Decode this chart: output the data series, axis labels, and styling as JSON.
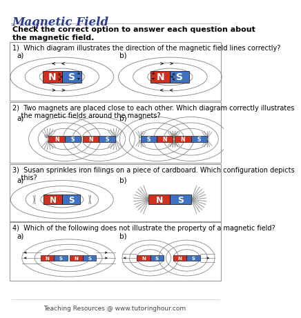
{
  "title": "Magnetic Field",
  "subtitle": "Check the correct option to answer each question about\nthe magnetic field.",
  "title_color": "#2B3990",
  "bg_color": "#ffffff",
  "q1_text": "1)  Which diagram illustrates the direction of the magnetic field lines correctly?",
  "q2_text": "2)  Two magnets are placed close to each other. Which diagram correctly illustrates\n    the magnetic fields around the magnets?",
  "q3_text": "3)  Susan sprinkles iron filings on a piece of cardboard. Which configuration depicts\n    this?",
  "q4_text": "4)  Which of the following does not illustrate the property of a magnetic field?",
  "footer": "Teaching Resources @ www.tutoringhour.com",
  "red_color": "#D03020",
  "blue_color": "#4070C0",
  "line_color": "#888888",
  "box_color": "#999999",
  "arrow_color": "#111111"
}
